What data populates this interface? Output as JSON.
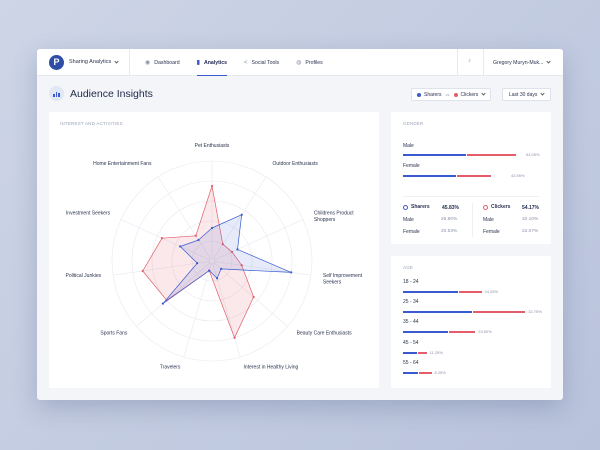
{
  "app": {
    "name": "Sharing Analytics",
    "logo_letter": "P"
  },
  "nav": [
    {
      "label": "Dashboard",
      "icon": "dashboard-icon",
      "active": false
    },
    {
      "label": "Analytics",
      "icon": "bar-chart-icon",
      "active": true
    },
    {
      "label": "Social Tools",
      "icon": "share-icon",
      "active": false
    },
    {
      "label": "Profiles",
      "icon": "profile-icon",
      "active": false
    }
  ],
  "user": {
    "name": "Gregory Muryn-Muk..."
  },
  "page": {
    "title": "Audience Insights"
  },
  "legend": {
    "sharers": "Sharers",
    "vs": "vs",
    "clickers": "Clickers"
  },
  "range": {
    "label": "Last 30 days"
  },
  "colors": {
    "sharers": "#3a5bd0",
    "clickers": "#e35d6a"
  },
  "interests": {
    "title": "INTEREST AND ACTIVITIES",
    "chart_data": {
      "type": "radar",
      "categories": [
        "Pet Enthusiasts",
        "Outdoor Enthusiasts",
        "Childrens Product Shoppers",
        "Self Improvement Seekers",
        "Beauty Care Enthusiasts",
        "Interest in Healthy Living",
        "Travelers",
        "Sports Fans",
        "Political Junkies",
        "Investment Seekers",
        "Home Entertainment Fans"
      ],
      "category_lines": [
        [
          "Pet Enthusiasts"
        ],
        [
          "Outdoor Enthusiasts"
        ],
        [
          "Childrens Product",
          "Shoppers"
        ],
        [
          "Self Improvement",
          "Seekers"
        ],
        [
          "Beauty Care Enthusiasts"
        ],
        [
          "Interest in Healthy Living"
        ],
        [
          "Travelers"
        ],
        [
          "Sports Fans"
        ],
        [
          "Political Junkies"
        ],
        [
          "Investment Seekers"
        ],
        [
          "Home Entertainment Fans"
        ]
      ],
      "series": [
        {
          "values": [
            0.33,
            0.55,
            0.28,
            0.8,
            0.12,
            0.18,
            0.1,
            0.65,
            0.15,
            0.35,
            0.25
          ]
        },
        {
          "values": [
            0.75,
            0.2,
            0.22,
            0.3,
            0.55,
            0.8,
            0.1,
            0.6,
            0.7,
            0.55,
            0.3
          ]
        }
      ],
      "rmax": 1,
      "rings": 5
    }
  },
  "gender": {
    "title": "GENDER",
    "rows": [
      {
        "label": "Male",
        "sharers": 45,
        "clickers": 35,
        "pct": "54.05%"
      },
      {
        "label": "Female",
        "sharers": 38,
        "clickers": 24,
        "pct": "43.95%"
      }
    ],
    "sharers": {
      "label": "Sharers",
      "value": "45.83%",
      "male": "25.80%",
      "female": "20.53%"
    },
    "clickers": {
      "label": "Clickers",
      "value": "54.17%",
      "male": "32.10%",
      "female": "22.07%"
    },
    "male_label": "Male",
    "female_label": "Female"
  },
  "age": {
    "title": "AGE",
    "rows": [
      {
        "label": "18 - 24",
        "sharers": 44,
        "clickers": 18,
        "pct": "24.25%"
      },
      {
        "label": "25 - 34",
        "sharers": 55,
        "clickers": 42,
        "pct": "32.75%"
      },
      {
        "label": "35 - 44",
        "sharers": 36,
        "clickers": 21,
        "pct": "23.50%"
      },
      {
        "label": "45 - 54",
        "sharers": 11,
        "clickers": 7,
        "pct": "11.25%"
      },
      {
        "label": "55 - 64",
        "sharers": 12,
        "clickers": 10,
        "pct": "8.25%"
      }
    ]
  }
}
